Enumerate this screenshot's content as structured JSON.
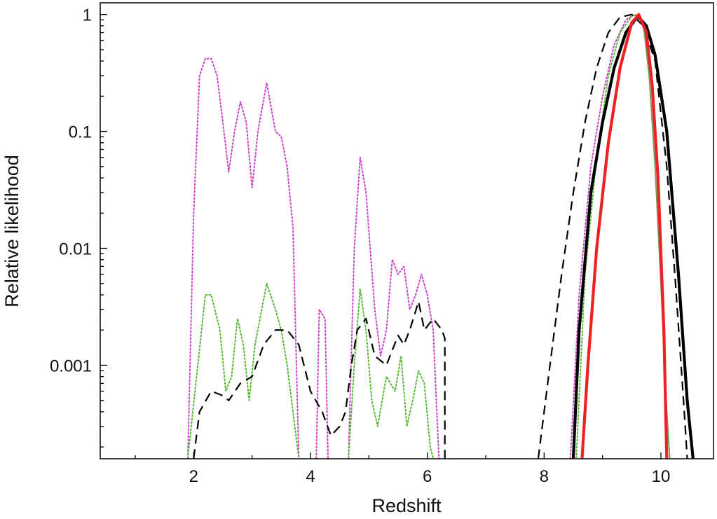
{
  "chart_data": {
    "type": "line",
    "xlabel": "Redshift",
    "ylabel": "Relative likelihood",
    "xlim": [
      0.4,
      10.9
    ],
    "ylim_log10": [
      -3.8,
      0.1
    ],
    "y_scale": "log",
    "grid": false,
    "legend": "none",
    "x_ticks": [
      {
        "value": 2,
        "label": "2"
      },
      {
        "value": 4,
        "label": "4"
      },
      {
        "value": 6,
        "label": "6"
      },
      {
        "value": 8,
        "label": "8"
      },
      {
        "value": 10,
        "label": "10"
      }
    ],
    "y_ticks": [
      {
        "value": 1,
        "label": "1"
      },
      {
        "value": 0.1,
        "label": "0.1"
      },
      {
        "value": 0.01,
        "label": "0.01"
      },
      {
        "value": 0.001,
        "label": "0.001"
      }
    ],
    "series": [
      {
        "color": "#cc44cc",
        "style": "dotted",
        "segments": [
          [
            [
              1.9,
              0.00016
            ],
            [
              2.0,
              0.02
            ],
            [
              2.1,
              0.3
            ],
            [
              2.2,
              0.42
            ],
            [
              2.3,
              0.42
            ],
            [
              2.4,
              0.3
            ],
            [
              2.5,
              0.12
            ],
            [
              2.6,
              0.045
            ],
            [
              2.7,
              0.1
            ],
            [
              2.8,
              0.18
            ],
            [
              2.9,
              0.12
            ],
            [
              3.0,
              0.033
            ],
            [
              3.1,
              0.1
            ],
            [
              3.25,
              0.26
            ],
            [
              3.4,
              0.1
            ],
            [
              3.5,
              0.09
            ],
            [
              3.6,
              0.05
            ],
            [
              3.7,
              0.015
            ],
            [
              3.8,
              0.00016
            ]
          ],
          [
            [
              4.1,
              0.00016
            ],
            [
              4.15,
              0.003
            ],
            [
              4.25,
              0.0025
            ],
            [
              4.3,
              0.00016
            ]
          ],
          [
            [
              4.65,
              0.00016
            ],
            [
              4.75,
              0.01
            ],
            [
              4.85,
              0.06
            ],
            [
              4.95,
              0.03
            ],
            [
              5.1,
              0.003
            ],
            [
              5.2,
              0.0012
            ],
            [
              5.3,
              0.002
            ],
            [
              5.4,
              0.008
            ],
            [
              5.5,
              0.006
            ],
            [
              5.6,
              0.007
            ],
            [
              5.7,
              0.003
            ],
            [
              5.8,
              0.004
            ],
            [
              5.9,
              0.006
            ],
            [
              6.0,
              0.004
            ],
            [
              6.1,
              0.002
            ],
            [
              6.2,
              0.00016
            ]
          ],
          [
            [
              8.45,
              0.00016
            ],
            [
              8.6,
              0.004
            ],
            [
              8.8,
              0.05
            ],
            [
              9.0,
              0.2
            ],
            [
              9.2,
              0.55
            ],
            [
              9.4,
              0.9
            ],
            [
              9.55,
              1.0
            ],
            [
              9.7,
              0.85
            ],
            [
              9.8,
              0.3
            ],
            [
              9.9,
              0.05
            ],
            [
              10.0,
              0.005
            ],
            [
              10.1,
              0.0004
            ],
            [
              10.15,
              0.00016
            ]
          ]
        ]
      },
      {
        "color": "#55bb33",
        "style": "dotted",
        "segments": [
          [
            [
              1.9,
              0.00016
            ],
            [
              2.05,
              0.0008
            ],
            [
              2.2,
              0.004
            ],
            [
              2.3,
              0.004
            ],
            [
              2.45,
              0.002
            ],
            [
              2.55,
              0.0006
            ],
            [
              2.65,
              0.0008
            ],
            [
              2.75,
              0.0025
            ],
            [
              2.85,
              0.0015
            ],
            [
              2.95,
              0.0005
            ],
            [
              3.05,
              0.0015
            ],
            [
              3.25,
              0.005
            ],
            [
              3.4,
              0.003
            ],
            [
              3.5,
              0.002
            ],
            [
              3.6,
              0.001
            ],
            [
              3.7,
              0.0004
            ],
            [
              3.8,
              0.00016
            ]
          ],
          [
            [
              4.65,
              0.00016
            ],
            [
              4.75,
              0.001
            ],
            [
              4.85,
              0.0045
            ],
            [
              4.95,
              0.002
            ],
            [
              5.05,
              0.0005
            ],
            [
              5.15,
              0.0003
            ],
            [
              5.3,
              0.0008
            ],
            [
              5.45,
              0.0006
            ],
            [
              5.55,
              0.0012
            ],
            [
              5.65,
              0.0003
            ],
            [
              5.75,
              0.0005
            ],
            [
              5.85,
              0.0009
            ],
            [
              5.95,
              0.0007
            ],
            [
              6.05,
              0.0002
            ],
            [
              6.1,
              0.00016
            ]
          ],
          [
            [
              8.55,
              0.00016
            ],
            [
              8.7,
              0.006
            ],
            [
              8.9,
              0.06
            ],
            [
              9.1,
              0.3
            ],
            [
              9.3,
              0.7
            ],
            [
              9.5,
              0.97
            ],
            [
              9.6,
              1.0
            ],
            [
              9.7,
              0.8
            ],
            [
              9.8,
              0.3
            ],
            [
              9.9,
              0.05
            ],
            [
              10.0,
              0.005
            ],
            [
              10.1,
              0.0004
            ],
            [
              10.15,
              0.00016
            ]
          ]
        ]
      },
      {
        "color": "#000000",
        "style": "dashed",
        "segments": [
          [
            [
              2.0,
              0.00016
            ],
            [
              2.1,
              0.0004
            ],
            [
              2.3,
              0.0006
            ],
            [
              2.5,
              0.00055
            ],
            [
              2.6,
              0.0005
            ],
            [
              2.8,
              0.0007
            ],
            [
              3.0,
              0.0008
            ],
            [
              3.2,
              0.0015
            ],
            [
              3.4,
              0.002
            ],
            [
              3.6,
              0.002
            ],
            [
              3.8,
              0.0015
            ],
            [
              4.0,
              0.0006
            ],
            [
              4.2,
              0.0004
            ],
            [
              4.35,
              0.00025
            ],
            [
              4.5,
              0.0003
            ],
            [
              4.6,
              0.0004
            ],
            [
              4.7,
              0.001
            ],
            [
              4.8,
              0.002
            ],
            [
              4.95,
              0.0025
            ],
            [
              5.1,
              0.0012
            ],
            [
              5.3,
              0.001
            ],
            [
              5.5,
              0.0018
            ],
            [
              5.6,
              0.0015
            ],
            [
              5.7,
              0.002
            ],
            [
              5.85,
              0.0035
            ],
            [
              5.95,
              0.002
            ],
            [
              6.1,
              0.0025
            ],
            [
              6.25,
              0.002
            ],
            [
              6.3,
              0.0017
            ],
            [
              6.3,
              0.00016
            ]
          ],
          [
            [
              7.9,
              0.00016
            ],
            [
              8.1,
              0.001
            ],
            [
              8.3,
              0.006
            ],
            [
              8.5,
              0.03
            ],
            [
              8.7,
              0.12
            ],
            [
              8.9,
              0.35
            ],
            [
              9.1,
              0.7
            ],
            [
              9.3,
              0.95
            ],
            [
              9.5,
              1.0
            ],
            [
              9.7,
              0.8
            ],
            [
              9.9,
              0.4
            ],
            [
              10.1,
              0.05
            ],
            [
              10.25,
              0.005
            ],
            [
              10.4,
              0.0004
            ],
            [
              10.45,
              0.00016
            ]
          ]
        ]
      },
      {
        "color": "#000000",
        "style": "solid",
        "width": 4.2,
        "segments": [
          [
            [
              8.5,
              0.00016
            ],
            [
              8.6,
              0.002
            ],
            [
              8.8,
              0.03
            ],
            [
              9.0,
              0.12
            ],
            [
              9.2,
              0.35
            ],
            [
              9.4,
              0.7
            ],
            [
              9.6,
              0.97
            ],
            [
              9.75,
              0.8
            ],
            [
              9.9,
              0.45
            ],
            [
              10.1,
              0.1
            ],
            [
              10.3,
              0.006
            ],
            [
              10.45,
              0.0005
            ],
            [
              10.55,
              0.00016
            ]
          ]
        ]
      },
      {
        "color": "#ee2222",
        "style": "solid",
        "width": 4.2,
        "segments": [
          [
            [
              8.65,
              0.00016
            ],
            [
              8.75,
              0.001
            ],
            [
              8.9,
              0.01
            ],
            [
              9.1,
              0.08
            ],
            [
              9.3,
              0.35
            ],
            [
              9.5,
              0.85
            ],
            [
              9.62,
              1.0
            ],
            [
              9.75,
              0.7
            ],
            [
              9.85,
              0.25
            ],
            [
              9.95,
              0.04
            ],
            [
              10.05,
              0.002
            ],
            [
              10.1,
              0.00016
            ]
          ]
        ]
      }
    ]
  }
}
